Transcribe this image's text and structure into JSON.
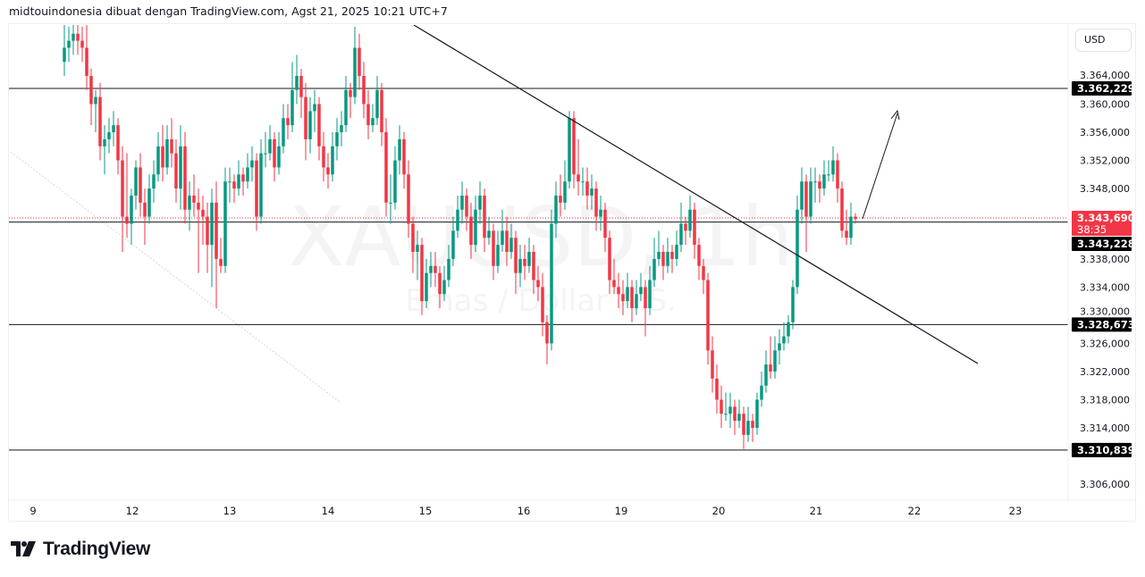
{
  "header": {
    "text": "midtouindonesia dibuat dengan TradingView.com, Agst 21, 2025 10:21 UTC+7"
  },
  "currency_button": "USD",
  "watermark": {
    "symbol": "XAUUSD, 1h",
    "description": "Emas / Dollar A.S."
  },
  "logo": {
    "text": "TradingView"
  },
  "colors": {
    "up": "#089981",
    "down": "#f23645",
    "lines": "#131722",
    "current_price": "#f23645"
  },
  "chart_data": {
    "type": "candlestick",
    "symbol": "XAUUSD",
    "interval": "1h",
    "ylim": [
      3302,
      3371
    ],
    "y_ticks": [
      {
        "value": 3364,
        "label": "3.364,000"
      },
      {
        "value": 3360,
        "label": "3.360,000"
      },
      {
        "value": 3356,
        "label": "3.356,000"
      },
      {
        "value": 3352,
        "label": "3.352,000"
      },
      {
        "value": 3348,
        "label": "3.348,000"
      },
      {
        "value": 3338,
        "label": "3.338,000"
      },
      {
        "value": 3334,
        "label": "3.334,000"
      },
      {
        "value": 3330,
        "label": "3.330,000"
      },
      {
        "value": 3326,
        "label": "3.326,000"
      },
      {
        "value": 3322,
        "label": "3.322,000"
      },
      {
        "value": 3318,
        "label": "3.318,000"
      },
      {
        "value": 3314,
        "label": "3.314,000"
      },
      {
        "value": 3306,
        "label": "3.306,000"
      }
    ],
    "x_ticks": [
      "9",
      "12",
      "13",
      "14",
      "15",
      "16",
      "19",
      "20",
      "21",
      "22",
      "23"
    ],
    "horizontal_levels": [
      {
        "value": 3362.229,
        "label": "3.362,229"
      },
      {
        "value": 3343.228,
        "label": "3.343,228"
      },
      {
        "value": 3328.673,
        "label": "3.328,673"
      },
      {
        "value": 3310.839,
        "label": "3.310,839"
      }
    ],
    "current_price": {
      "value": 3343.69,
      "label": "3.343,690",
      "countdown": "38:35"
    },
    "candles_ohlc": [
      [
        3366,
        3372,
        3364,
        3368
      ],
      [
        3368,
        3371,
        3366,
        3369
      ],
      [
        3369,
        3372,
        3367,
        3370
      ],
      [
        3370,
        3372,
        3367,
        3369
      ],
      [
        3369,
        3371,
        3366,
        3368
      ],
      [
        3368,
        3372,
        3362,
        3364
      ],
      [
        3364,
        3365,
        3357,
        3360
      ],
      [
        3360,
        3362,
        3356,
        3361
      ],
      [
        3361,
        3363,
        3352,
        3354
      ],
      [
        3354,
        3357,
        3350,
        3355
      ],
      [
        3355,
        3358,
        3353,
        3356
      ],
      [
        3356,
        3359,
        3354,
        3357
      ],
      [
        3357,
        3358,
        3350,
        3352
      ],
      [
        3352,
        3354,
        3339,
        3344
      ],
      [
        3344,
        3353,
        3341,
        3343
      ],
      [
        3343,
        3348,
        3340,
        3347
      ],
      [
        3347,
        3352,
        3345,
        3351
      ],
      [
        3351,
        3353,
        3344,
        3346
      ],
      [
        3346,
        3348,
        3340,
        3344
      ],
      [
        3344,
        3350,
        3343,
        3348
      ],
      [
        3348,
        3352,
        3346,
        3350
      ],
      [
        3350,
        3356,
        3349,
        3354
      ],
      [
        3354,
        3357,
        3349,
        3351
      ],
      [
        3351,
        3357,
        3350,
        3355
      ],
      [
        3355,
        3358,
        3351,
        3353
      ],
      [
        3353,
        3355,
        3346,
        3348
      ],
      [
        3348,
        3357,
        3345,
        3354
      ],
      [
        3354,
        3356,
        3343,
        3345
      ],
      [
        3345,
        3349,
        3342,
        3347
      ],
      [
        3347,
        3350,
        3344,
        3346
      ],
      [
        3346,
        3348,
        3336,
        3345
      ],
      [
        3345,
        3347,
        3340,
        3344
      ],
      [
        3344,
        3346,
        3336,
        3340
      ],
      [
        3340,
        3348,
        3334,
        3346
      ],
      [
        3346,
        3349,
        3331,
        3338
      ],
      [
        3338,
        3341,
        3336,
        3337
      ],
      [
        3337,
        3351,
        3336,
        3349
      ],
      [
        3349,
        3351,
        3346,
        3349
      ],
      [
        3349,
        3350,
        3346,
        3348
      ],
      [
        3348,
        3352,
        3347,
        3350
      ],
      [
        3350,
        3351,
        3347,
        3349
      ],
      [
        3349,
        3353,
        3348,
        3351
      ],
      [
        3351,
        3354,
        3349,
        3352
      ],
      [
        3352,
        3353,
        3342,
        3344
      ],
      [
        3344,
        3355,
        3343,
        3353
      ],
      [
        3353,
        3356,
        3351,
        3353
      ],
      [
        3353,
        3357,
        3352,
        3355
      ],
      [
        3355,
        3356,
        3349,
        3351
      ],
      [
        3351,
        3356,
        3350,
        3354
      ],
      [
        3354,
        3360,
        3353,
        3358
      ],
      [
        3358,
        3360,
        3355,
        3357
      ],
      [
        3357,
        3366,
        3356,
        3362
      ],
      [
        3362,
        3367,
        3360,
        3364
      ],
      [
        3364,
        3365,
        3358,
        3361
      ],
      [
        3361,
        3363,
        3352,
        3355
      ],
      [
        3355,
        3361,
        3353,
        3359
      ],
      [
        3359,
        3362,
        3356,
        3360
      ],
      [
        3360,
        3361,
        3352,
        3354
      ],
      [
        3354,
        3356,
        3349,
        3351
      ],
      [
        3351,
        3353,
        3348,
        3350
      ],
      [
        3350,
        3356,
        3349,
        3354
      ],
      [
        3354,
        3358,
        3352,
        3356
      ],
      [
        3356,
        3359,
        3354,
        3357
      ],
      [
        3357,
        3364,
        3356,
        3362
      ],
      [
        3362,
        3363,
        3358,
        3361
      ],
      [
        3361,
        3371,
        3360,
        3368
      ],
      [
        3368,
        3370,
        3362,
        3364
      ],
      [
        3364,
        3366,
        3358,
        3360
      ],
      [
        3360,
        3362,
        3355,
        3357
      ],
      [
        3357,
        3360,
        3356,
        3358
      ],
      [
        3358,
        3364,
        3357,
        3362
      ],
      [
        3362,
        3363,
        3354,
        3356
      ],
      [
        3356,
        3358,
        3344,
        3346
      ],
      [
        3346,
        3350,
        3343,
        3346
      ],
      [
        3346,
        3354,
        3345,
        3352
      ],
      [
        3352,
        3357,
        3350,
        3355
      ],
      [
        3355,
        3356,
        3348,
        3350
      ],
      [
        3350,
        3352,
        3341,
        3343
      ],
      [
        3343,
        3344,
        3336,
        3339
      ],
      [
        3339,
        3342,
        3335,
        3340
      ],
      [
        3340,
        3341,
        3330,
        3332
      ],
      [
        3332,
        3338,
        3331,
        3336
      ],
      [
        3336,
        3339,
        3334,
        3337
      ],
      [
        3337,
        3339,
        3334,
        3336
      ],
      [
        3336,
        3337,
        3331,
        3333
      ],
      [
        3333,
        3337,
        3332,
        3335
      ],
      [
        3335,
        3340,
        3334,
        3338
      ],
      [
        3338,
        3344,
        3337,
        3342
      ],
      [
        3342,
        3347,
        3341,
        3345
      ],
      [
        3345,
        3349,
        3343,
        3347
      ],
      [
        3347,
        3348,
        3342,
        3344
      ],
      [
        3344,
        3346,
        3338,
        3340
      ],
      [
        3340,
        3347,
        3339,
        3345
      ],
      [
        3345,
        3349,
        3343,
        3347
      ],
      [
        3347,
        3348,
        3339,
        3341
      ],
      [
        3341,
        3344,
        3340,
        3342
      ],
      [
        3342,
        3343,
        3335,
        3337
      ],
      [
        3337,
        3342,
        3336,
        3340
      ],
      [
        3340,
        3345,
        3339,
        3342
      ],
      [
        3342,
        3344,
        3337,
        3339
      ],
      [
        3339,
        3343,
        3338,
        3341
      ],
      [
        3341,
        3342,
        3333,
        3336
      ],
      [
        3336,
        3340,
        3334,
        3338
      ],
      [
        3338,
        3340,
        3335,
        3337
      ],
      [
        3337,
        3341,
        3336,
        3339
      ],
      [
        3339,
        3340,
        3333,
        3335
      ],
      [
        3335,
        3337,
        3332,
        3334
      ],
      [
        3334,
        3336,
        3327,
        3329
      ],
      [
        3329,
        3330,
        3323,
        3326
      ],
      [
        3326,
        3345,
        3325,
        3343
      ],
      [
        3343,
        3349,
        3341,
        3347
      ],
      [
        3347,
        3350,
        3344,
        3346
      ],
      [
        3346,
        3352,
        3345,
        3349
      ],
      [
        3349,
        3359,
        3348,
        3358
      ],
      [
        3358,
        3359,
        3348,
        3350
      ],
      [
        3350,
        3355,
        3347,
        3349
      ],
      [
        3349,
        3351,
        3347,
        3349
      ],
      [
        3349,
        3351,
        3345,
        3347
      ],
      [
        3347,
        3350,
        3345,
        3348
      ],
      [
        3348,
        3349,
        3342,
        3344
      ],
      [
        3344,
        3347,
        3342,
        3345
      ],
      [
        3345,
        3346,
        3339,
        3341
      ],
      [
        3341,
        3342,
        3333,
        3335
      ],
      [
        3335,
        3338,
        3333,
        3334
      ],
      [
        3334,
        3336,
        3331,
        3333
      ],
      [
        3333,
        3335,
        3330,
        3332
      ],
      [
        3332,
        3336,
        3331,
        3334
      ],
      [
        3334,
        3335,
        3329,
        3331
      ],
      [
        3331,
        3335,
        3330,
        3333
      ],
      [
        3333,
        3336,
        3332,
        3334
      ],
      [
        3334,
        3335,
        3327,
        3331
      ],
      [
        3331,
        3337,
        3330,
        3335
      ],
      [
        3335,
        3341,
        3334,
        3338
      ],
      [
        3338,
        3342,
        3337,
        3339
      ],
      [
        3339,
        3340,
        3335,
        3337
      ],
      [
        3337,
        3341,
        3336,
        3339
      ],
      [
        3339,
        3340,
        3336,
        3338
      ],
      [
        3338,
        3342,
        3337,
        3340
      ],
      [
        3340,
        3346,
        3339,
        3343
      ],
      [
        3343,
        3344,
        3340,
        3342
      ],
      [
        3342,
        3347,
        3341,
        3345
      ],
      [
        3345,
        3346,
        3338,
        3340
      ],
      [
        3340,
        3341,
        3335,
        3337
      ],
      [
        3337,
        3338,
        3333,
        3335
      ],
      [
        3335,
        3336,
        3323,
        3325
      ],
      [
        3325,
        3327,
        3319,
        3321
      ],
      [
        3321,
        3323,
        3316,
        3318
      ],
      [
        3318,
        3320,
        3314,
        3316
      ],
      [
        3316,
        3319,
        3315,
        3316
      ],
      [
        3316,
        3319,
        3314,
        3317
      ],
      [
        3317,
        3318,
        3313,
        3315
      ],
      [
        3315,
        3318,
        3314,
        3316
      ],
      [
        3316,
        3317,
        3311,
        3313
      ],
      [
        3313,
        3317,
        3312,
        3315
      ],
      [
        3315,
        3316,
        3312,
        3314
      ],
      [
        3314,
        3319,
        3313,
        3318
      ],
      [
        3318,
        3322,
        3317,
        3320
      ],
      [
        3320,
        3325,
        3319,
        3323
      ],
      [
        3323,
        3327,
        3321,
        3322
      ],
      [
        3322,
        3327,
        3321,
        3325
      ],
      [
        3325,
        3328,
        3323,
        3326
      ],
      [
        3326,
        3329,
        3325,
        3327
      ],
      [
        3327,
        3330,
        3326,
        3329
      ],
      [
        3329,
        3335,
        3328,
        3334
      ],
      [
        3334,
        3347,
        3333,
        3345
      ],
      [
        3345,
        3351,
        3343,
        3349
      ],
      [
        3349,
        3350,
        3339,
        3344
      ],
      [
        3344,
        3351,
        3343,
        3349
      ],
      [
        3349,
        3351,
        3346,
        3349
      ],
      [
        3349,
        3350,
        3346,
        3348
      ],
      [
        3348,
        3352,
        3347,
        3350
      ],
      [
        3350,
        3352,
        3349,
        3350
      ],
      [
        3350,
        3354,
        3349,
        3352
      ],
      [
        3352,
        3353,
        3346,
        3348
      ],
      [
        3348,
        3349,
        3341,
        3342
      ],
      [
        3342,
        3345,
        3340,
        3341
      ],
      [
        3341,
        3346,
        3340,
        3344
      ],
      [
        3344,
        3344.5,
        3343,
        3343.69
      ]
    ]
  }
}
